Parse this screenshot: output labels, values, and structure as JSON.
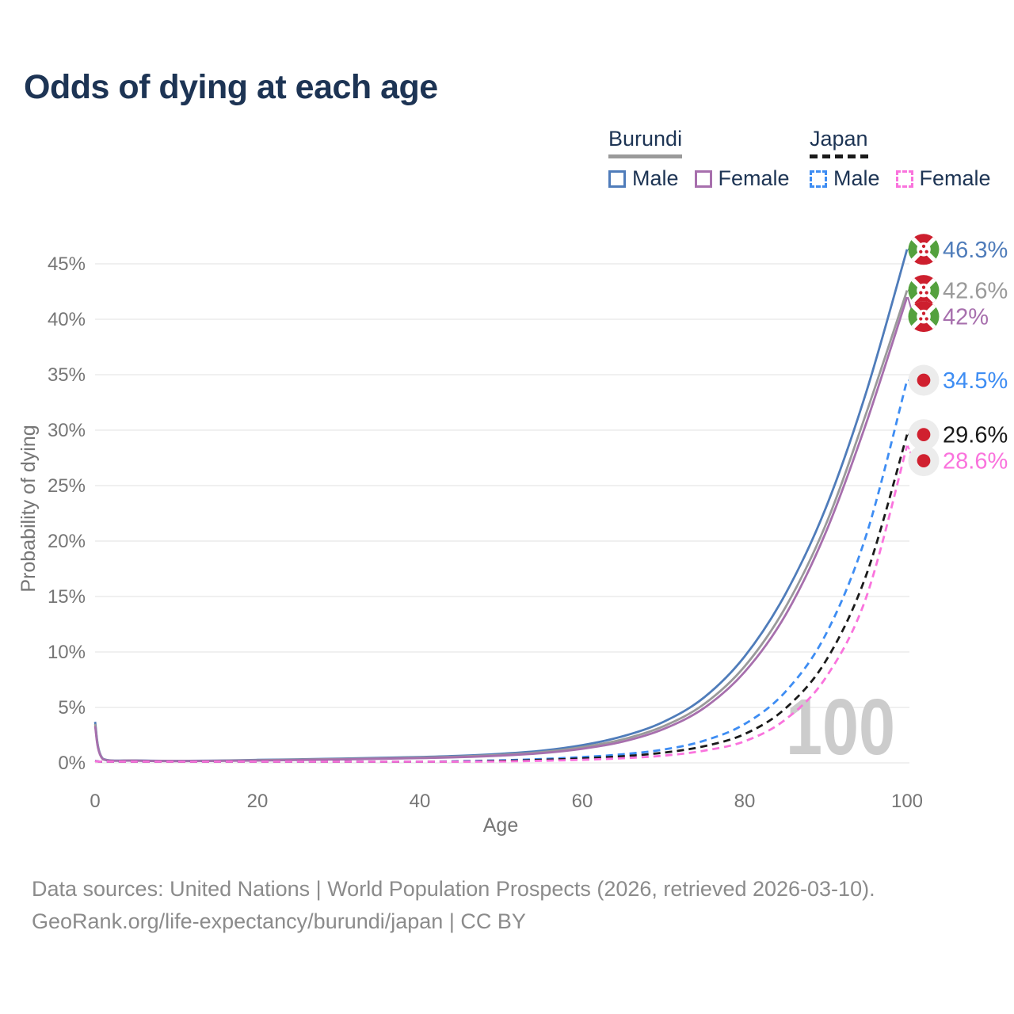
{
  "page": {
    "title": "Odds of dying at each age"
  },
  "legend": {
    "groups": [
      {
        "name": "Burundi",
        "style": "solid",
        "underline_color": "#9a9a9a",
        "items": [
          {
            "label": "Male",
            "color": "#4f7cba"
          },
          {
            "label": "Female",
            "color": "#a76fad"
          }
        ]
      },
      {
        "name": "Japan",
        "style": "dashed",
        "underline_color": "#1a1a1a",
        "items": [
          {
            "label": "Male",
            "color": "#3e8df3"
          },
          {
            "label": "Female",
            "color": "#fa73dd"
          }
        ]
      }
    ]
  },
  "chart_data": {
    "type": "line",
    "title": "Odds of dying at each age",
    "xlabel": "Age",
    "ylabel": "Probability of dying",
    "xlim": [
      0,
      100
    ],
    "ylim": [
      0,
      47
    ],
    "grid": "horizontal",
    "legend_position": "top-right",
    "age_indicator": "100",
    "x_ticks": [
      0,
      20,
      40,
      60,
      80,
      100
    ],
    "x_tick_labels": [
      "0",
      "20",
      "40",
      "60",
      "80",
      "100"
    ],
    "y_ticks": [
      0,
      5,
      10,
      15,
      20,
      25,
      30,
      35,
      40,
      45
    ],
    "y_tick_labels": [
      "0%",
      "5%",
      "10%",
      "15%",
      "20%",
      "25%",
      "30%",
      "35%",
      "40%",
      "45%"
    ],
    "x": [
      0,
      1,
      5,
      10,
      15,
      20,
      25,
      30,
      35,
      40,
      45,
      50,
      55,
      60,
      65,
      70,
      75,
      80,
      85,
      90,
      95,
      100
    ],
    "series": [
      {
        "id": "burundi-male",
        "name": "Burundi Male",
        "country": "Burundi",
        "flag": "burundi",
        "color": "#4f7cba",
        "dash": "solid",
        "end_label": "46.3%",
        "y": [
          3.7,
          0.35,
          0.22,
          0.18,
          0.2,
          0.27,
          0.32,
          0.38,
          0.45,
          0.53,
          0.64,
          0.82,
          1.1,
          1.6,
          2.4,
          3.7,
          5.9,
          9.6,
          15.2,
          23.0,
          33.5,
          46.3
        ]
      },
      {
        "id": "burundi-all",
        "name": "Burundi (all)",
        "country": "Burundi",
        "flag": "burundi",
        "color": "#9a9a9a",
        "dash": "solid",
        "end_label": "42.6%",
        "y": [
          3.5,
          0.33,
          0.21,
          0.17,
          0.19,
          0.24,
          0.29,
          0.34,
          0.4,
          0.47,
          0.57,
          0.73,
          0.97,
          1.42,
          2.12,
          3.3,
          5.3,
          8.7,
          14.0,
          21.5,
          31.6,
          42.6
        ]
      },
      {
        "id": "burundi-female",
        "name": "Burundi Female",
        "country": "Burundi",
        "flag": "burundi",
        "color": "#a76fad",
        "dash": "solid",
        "end_label": "42%",
        "y": [
          3.3,
          0.31,
          0.2,
          0.16,
          0.18,
          0.21,
          0.26,
          0.31,
          0.37,
          0.43,
          0.52,
          0.66,
          0.88,
          1.27,
          1.92,
          3.05,
          4.95,
          8.2,
          13.3,
          20.8,
          30.7,
          42.0
        ]
      },
      {
        "id": "japan-male",
        "name": "Japan Male",
        "country": "Japan",
        "flag": "japan",
        "color": "#3e8df3",
        "dash": "dashed",
        "end_label": "34.5%",
        "y": [
          0.18,
          0.03,
          0.01,
          0.01,
          0.03,
          0.04,
          0.05,
          0.06,
          0.08,
          0.1,
          0.15,
          0.23,
          0.35,
          0.52,
          0.78,
          1.2,
          2.0,
          3.5,
          6.4,
          11.6,
          20.6,
          34.5
        ]
      },
      {
        "id": "japan-all",
        "name": "Japan (all)",
        "country": "Japan",
        "flag": "japan",
        "color": "#1a1a1a",
        "dash": "dashed",
        "end_label": "29.6%",
        "y": [
          0.17,
          0.03,
          0.01,
          0.01,
          0.02,
          0.03,
          0.04,
          0.05,
          0.06,
          0.08,
          0.12,
          0.18,
          0.27,
          0.4,
          0.6,
          0.92,
          1.5,
          2.6,
          4.9,
          9.2,
          17.0,
          29.6
        ]
      },
      {
        "id": "japan-female",
        "name": "Japan Female",
        "country": "Japan",
        "flag": "japan",
        "color": "#fa73dd",
        "dash": "dashed",
        "end_label": "28.6%",
        "y": [
          0.16,
          0.02,
          0.01,
          0.01,
          0.02,
          0.02,
          0.03,
          0.04,
          0.05,
          0.06,
          0.09,
          0.13,
          0.19,
          0.28,
          0.42,
          0.65,
          1.1,
          1.95,
          3.9,
          7.7,
          15.0,
          28.6
        ]
      }
    ]
  },
  "colors": {
    "title": "#1d3454",
    "axis_text": "#767676",
    "grid": "#e8e8e8",
    "watermark": "#cccccc",
    "footer": "#8b8b8b"
  },
  "icons": {
    "burundi_flag": {
      "red": "#cd1f2e",
      "green": "#54a13e",
      "white": "#ffffff"
    },
    "japan_flag": {
      "bg": "#ececec",
      "red": "#d0202f"
    }
  },
  "footer": {
    "line1": "Data sources: United Nations | World Population Prospects (2026, retrieved 2026-03-10).",
    "line2": "GeoRank.org/life-expectancy/burundi/japan | CC BY"
  }
}
